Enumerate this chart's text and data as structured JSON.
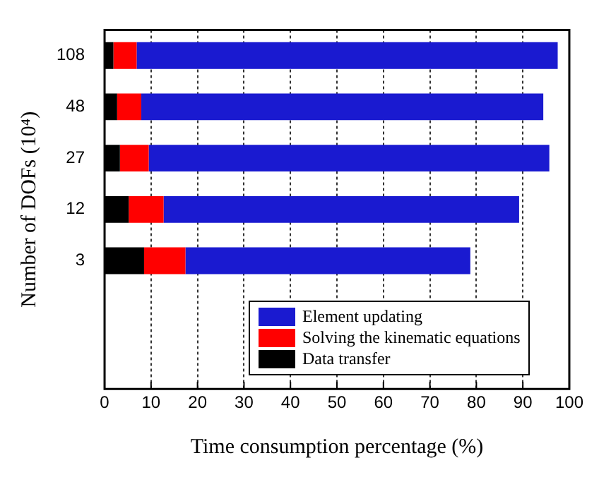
{
  "chart_data": {
    "type": "bar",
    "orientation": "horizontal",
    "stacked": true,
    "xlabel": "Time consumption percentage (%)",
    "ylabel": "Number of DOFs (10⁴)",
    "categories": [
      "108",
      "48",
      "27",
      "12",
      "3"
    ],
    "series": [
      {
        "name": "Data transfer",
        "color": "#000000",
        "values": [
          1.9,
          2.7,
          3.3,
          5.2,
          8.5
        ]
      },
      {
        "name": "Solving the kinematic equations",
        "color": "#ff0000",
        "values": [
          5.0,
          5.2,
          6.2,
          7.5,
          8.9
        ]
      },
      {
        "name": "Element updating",
        "color": "#1a1ad0",
        "values": [
          90.6,
          86.5,
          86.2,
          76.5,
          61.3
        ]
      }
    ],
    "xlim": [
      0,
      100
    ],
    "xticks": [
      0,
      10,
      20,
      30,
      40,
      50,
      60,
      70,
      80,
      90,
      100
    ],
    "grid": "x",
    "legend": "bottom right"
  }
}
